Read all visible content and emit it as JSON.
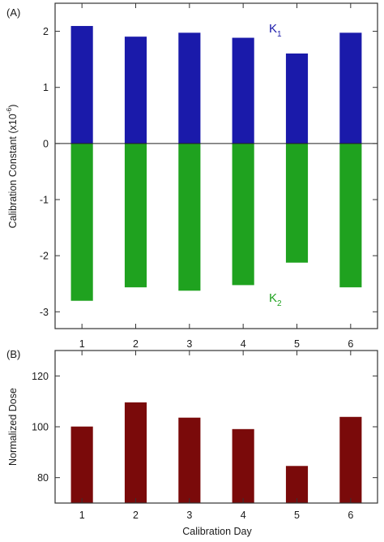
{
  "chart_data": [
    {
      "id": "A",
      "panel_label": "(A)",
      "type": "bar",
      "categories": [
        "1",
        "2",
        "3",
        "4",
        "5",
        "6"
      ],
      "ylabel": "Calibration Constant (x10",
      "ylabel_exponent": "-6",
      "ylabel_suffix": ")",
      "xlabel": "",
      "ylim": [
        -3.3,
        2.5
      ],
      "yticks": [
        "2",
        "1",
        "0",
        "-1",
        "-2",
        "-3"
      ],
      "ytick_values": [
        2,
        1,
        0,
        -1,
        -2,
        -3
      ],
      "series": [
        {
          "name": "K",
          "subscript": "1",
          "color": "#1a1aaa",
          "values": [
            2.09,
            1.9,
            1.97,
            1.88,
            1.6,
            1.97
          ]
        },
        {
          "name": "K",
          "subscript": "2",
          "color": "#1fa21f",
          "values": [
            -2.8,
            -2.56,
            -2.62,
            -2.52,
            -2.12,
            -2.56
          ]
        }
      ],
      "legend": "inline labels, top-right (K1) and bottom-right (K2)"
    },
    {
      "id": "B",
      "panel_label": "(B)",
      "type": "bar",
      "categories": [
        "1",
        "2",
        "3",
        "4",
        "5",
        "6"
      ],
      "ylabel": "Normalized Dose",
      "xlabel": "Calibration Day",
      "ylim": [
        70,
        130
      ],
      "yticks": [
        "120",
        "100",
        "80"
      ],
      "ytick_values": [
        120,
        100,
        80
      ],
      "series": [
        {
          "name": "",
          "color": "#7a0a0a",
          "values": [
            100,
            109.5,
            103.5,
            99,
            84.5,
            103.8
          ]
        }
      ]
    }
  ]
}
